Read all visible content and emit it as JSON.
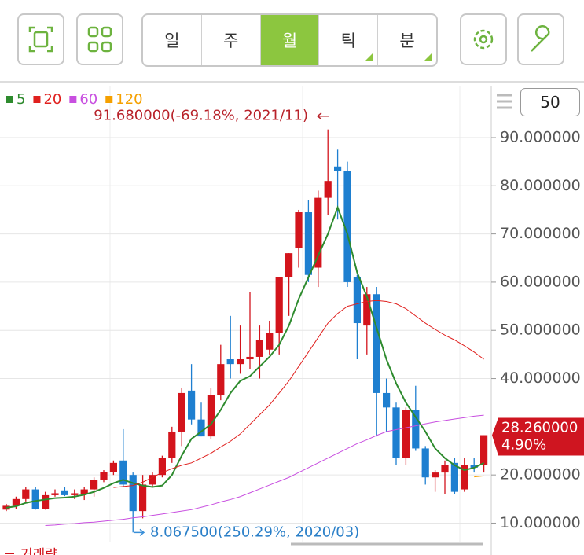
{
  "toolbar": {
    "tabs": [
      "일",
      "주",
      "월",
      "틱",
      "분"
    ],
    "active_tab": 2,
    "count": "50"
  },
  "chart_data": {
    "type": "candlestick",
    "candles": {
      "open": [
        12.8,
        13.6,
        15.0,
        17.0,
        13.0,
        15.8,
        16.8,
        15.8,
        16.0,
        17.0,
        19.0,
        20.6,
        23.0,
        20.0,
        12.5,
        18.0,
        20.0,
        23.5,
        29.0,
        37.5,
        31.5,
        28.0,
        36.5,
        44.0,
        43.0,
        44.0,
        44.5,
        46.0,
        49.5,
        61.0,
        67.0,
        74.5,
        63.0,
        77.5,
        84.0,
        83.0,
        61.0,
        51.0,
        57.5,
        37.0,
        34.0,
        23.5,
        33.5,
        25.5,
        19.5,
        20.5,
        22.5,
        17.0,
        22.0,
        22.0
      ],
      "high": [
        14.0,
        15.5,
        17.5,
        17.5,
        16.5,
        17.0,
        17.5,
        17.0,
        17.5,
        19.5,
        21.0,
        23.0,
        29.5,
        20.5,
        20.0,
        20.5,
        24.0,
        30.0,
        38.0,
        43.0,
        35.0,
        38.0,
        47.0,
        53.0,
        51.0,
        58.0,
        51.0,
        52.0,
        61.0,
        66.0,
        75.0,
        77.0,
        79.0,
        91.68,
        87.5,
        85.0,
        61.5,
        59.0,
        59.0,
        40.0,
        35.0,
        34.0,
        38.5,
        26.0,
        21.0,
        23.0,
        23.5,
        23.5,
        23.5,
        28.26
      ],
      "low": [
        12.5,
        13.0,
        14.5,
        12.8,
        12.8,
        15.5,
        15.6,
        15.0,
        14.8,
        15.5,
        18.5,
        20.0,
        17.5,
        8.0675,
        11.0,
        17.5,
        19.5,
        22.5,
        26.0,
        30.5,
        28.0,
        27.5,
        35.5,
        40.0,
        41.0,
        42.0,
        40.0,
        45.0,
        45.0,
        53.0,
        63.0,
        60.0,
        59.0,
        74.0,
        73.0,
        59.0,
        44.0,
        45.0,
        28.0,
        29.0,
        22.0,
        22.0,
        25.0,
        18.0,
        16.5,
        16.0,
        16.0,
        16.5,
        20.5,
        20.5
      ],
      "close": [
        13.6,
        15.0,
        17.0,
        13.0,
        15.8,
        16.2,
        15.8,
        16.2,
        17.0,
        19.0,
        20.6,
        22.5,
        18.0,
        12.5,
        18.0,
        20.0,
        23.5,
        29.0,
        37.0,
        31.5,
        28.0,
        36.5,
        43.0,
        43.0,
        44.0,
        44.5,
        48.0,
        49.5,
        61.0,
        66.0,
        74.5,
        61.5,
        77.5,
        81.0,
        83.0,
        60.0,
        51.5,
        57.5,
        37.0,
        34.0,
        23.5,
        33.5,
        25.5,
        19.5,
        20.5,
        22.0,
        16.5,
        22.0,
        21.5,
        28.26
      ]
    },
    "up_color": "#d3141c",
    "down_color": "#1e7fd0",
    "series": [
      {
        "name": "5",
        "color": "#2e8b2e",
        "values": [
          13.2,
          13.5,
          14.2,
          14.6,
          14.9,
          15.2,
          15.3,
          15.5,
          15.9,
          16.5,
          17.3,
          18.3,
          19.0,
          18.3,
          17.8,
          17.5,
          17.8,
          20.0,
          24.0,
          27.5,
          29.0,
          30.5,
          33.5,
          37.0,
          39.5,
          40.5,
          42.5,
          44.5,
          47.0,
          51.0,
          56.5,
          61.0,
          65.5,
          70.0,
          75.5,
          70.0,
          62.0,
          57.0,
          50.5,
          44.0,
          39.0,
          35.0,
          32.0,
          29.0,
          25.5,
          23.5,
          22.0,
          21.0,
          21.5,
          22.5
        ]
      },
      {
        "name": "20",
        "color": "#e0201e",
        "values": [
          null,
          null,
          null,
          null,
          null,
          null,
          null,
          null,
          null,
          null,
          null,
          17.4,
          17.6,
          17.8,
          18.5,
          19.5,
          20.5,
          21.3,
          22.0,
          22.5,
          23.5,
          24.5,
          25.8,
          27.0,
          28.5,
          30.5,
          32.5,
          34.5,
          37.0,
          39.5,
          42.5,
          45.5,
          48.5,
          51.5,
          53.5,
          55.0,
          55.5,
          56.0,
          56.2,
          56.0,
          55.5,
          54.5,
          53.0,
          51.5,
          50.2,
          49.0,
          48.0,
          46.8,
          45.5,
          44.0
        ]
      },
      {
        "name": "60",
        "color": "#c84fe0",
        "values": [
          null,
          null,
          null,
          null,
          9.5,
          9.6,
          9.8,
          9.9,
          10.1,
          10.2,
          10.4,
          10.6,
          10.8,
          11.1,
          11.3,
          11.6,
          11.9,
          12.2,
          12.5,
          12.8,
          13.3,
          13.8,
          14.4,
          14.9,
          15.5,
          16.3,
          17.1,
          17.9,
          18.7,
          19.5,
          20.5,
          21.5,
          22.5,
          23.5,
          24.5,
          25.5,
          26.5,
          27.3,
          28.2,
          29.0,
          29.4,
          29.8,
          30.2,
          30.6,
          31.0,
          31.3,
          31.6,
          31.9,
          32.2,
          32.4
        ]
      },
      {
        "name": "120",
        "color": "#f5a000",
        "values": [
          null,
          null,
          null,
          null,
          null,
          null,
          null,
          null,
          null,
          null,
          null,
          null,
          null,
          null,
          null,
          null,
          null,
          null,
          null,
          null,
          null,
          null,
          null,
          null,
          null,
          null,
          null,
          null,
          null,
          null,
          null,
          null,
          null,
          null,
          null,
          null,
          null,
          null,
          null,
          null,
          null,
          null,
          null,
          null,
          null,
          null,
          null,
          null,
          19.6,
          19.8
        ]
      }
    ],
    "ylim": [
      6,
      100.6
    ],
    "yticks": [
      {
        "value": 10,
        "label": "10.000000"
      },
      {
        "value": 20,
        "label": "20.000000"
      },
      {
        "value": 40,
        "label": "40.000000"
      },
      {
        "value": 50,
        "label": "50.000000"
      },
      {
        "value": 60,
        "label": "60.000000"
      },
      {
        "value": 70,
        "label": "70.000000"
      },
      {
        "value": 80,
        "label": "80.000000"
      },
      {
        "value": 90,
        "label": "90.000000"
      }
    ],
    "grid": true,
    "max_annotation": "91.680000(-69.18%, 2021/11)",
    "min_annotation": "8.067500(250.29%, 2020/03)",
    "price_tag": {
      "label": "28.260000",
      "change": "4.90%"
    },
    "volume_label": "거래량"
  }
}
